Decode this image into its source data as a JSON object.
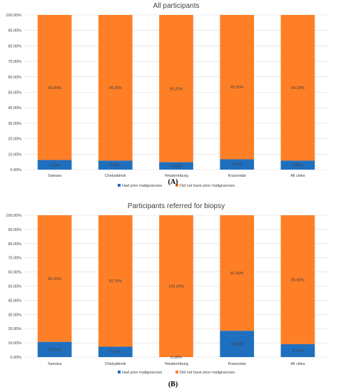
{
  "colors": {
    "had": "#1f6fbf",
    "did_not": "#ff7f27",
    "grid": "#d9d9d9",
    "text": "#404040"
  },
  "captions": {
    "a": "(A)",
    "b": "(B)"
  },
  "chart_data": [
    {
      "type": "bar",
      "stacked": true,
      "title": "All participants",
      "categories": [
        "Samara",
        "Chelyabinsk",
        "Yekaterinburg",
        "Krasnodar",
        "All cities"
      ],
      "ylim": [
        0,
        100
      ],
      "ytick_labels": [
        "0.00%",
        "10.00%",
        "20.00%",
        "30.00%",
        "40.00%",
        "50.00%",
        "60.00%",
        "70.00%",
        "80.00%",
        "90.00%",
        "100.00%"
      ],
      "grid": true,
      "legend_position": "bottom",
      "series": [
        {
          "name": "Had prior malignancies",
          "values": [
            6.2,
            5.8,
            4.8,
            6.7,
            5.8
          ],
          "labels": [
            "6.20%",
            "5.80%",
            "4.80%",
            "6.70%",
            "5.80%"
          ]
        },
        {
          "name": "Did not have prior malignancies",
          "values": [
            93.8,
            94.2,
            95.2,
            93.3,
            94.2
          ],
          "labels": [
            "93.80%",
            "94.20%",
            "95.20%",
            "93.30%",
            "94.20%"
          ]
        }
      ]
    },
    {
      "type": "bar",
      "stacked": true,
      "title": "Participants referred for biopsy",
      "categories": [
        "Samara",
        "Chelyabinsk",
        "Yekaterinburg",
        "Krasnodar",
        "All cities"
      ],
      "ylim": [
        0,
        100
      ],
      "ytick_labels": [
        "0.00%",
        "10.00%",
        "20.00%",
        "30.00%",
        "40.00%",
        "50.00%",
        "60.00%",
        "70.00%",
        "80.00%",
        "90.00%",
        "100.00%"
      ],
      "grid": true,
      "legend_position": "bottom",
      "series": [
        {
          "name": "Had prior malignancies",
          "values": [
            10.7,
            7.3,
            0.0,
            18.5,
            9.1
          ],
          "labels": [
            "10.70%",
            "7.30%",
            "0.00%",
            "18.50%",
            "9.10%"
          ]
        },
        {
          "name": "Did not have prior malignancies",
          "values": [
            89.3,
            92.7,
            100.0,
            81.5,
            90.9
          ],
          "labels": [
            "89.30%",
            "92.70%",
            "100.00%",
            "81.50%",
            "90.90%"
          ]
        }
      ]
    }
  ]
}
